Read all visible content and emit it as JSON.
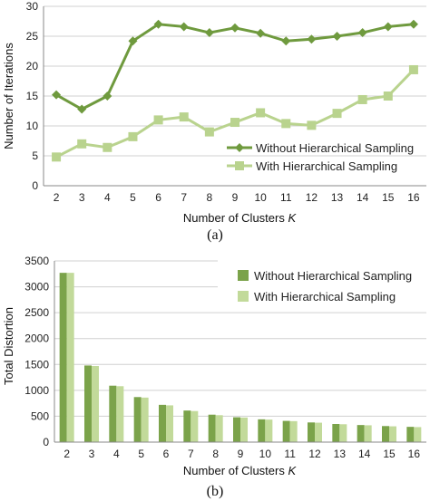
{
  "chart_data": [
    {
      "type": "line",
      "panel_label": "(a)",
      "x": [
        2,
        3,
        4,
        5,
        6,
        7,
        8,
        9,
        10,
        11,
        12,
        13,
        14,
        15,
        16
      ],
      "ylabel": "Number of Iterations",
      "xlabel_main": "Number of Clusters ",
      "xlabel_var": "K",
      "ylim": [
        0,
        30
      ],
      "yticks": [
        0,
        5,
        10,
        15,
        20,
        25,
        30
      ],
      "grid": "horizontal",
      "legend_position": "lower-right",
      "series": [
        {
          "name": "Without Hierarchical Sampling",
          "color": "#6f9a3e",
          "marker": "diamond",
          "values": [
            15.2,
            12.8,
            15.0,
            24.2,
            27.0,
            26.6,
            25.6,
            26.4,
            25.5,
            24.2,
            24.5,
            25.0,
            25.6,
            26.6,
            27.0
          ]
        },
        {
          "name": "With Hierarchical Sampling",
          "color": "#b9d38e",
          "marker": "square",
          "values": [
            4.8,
            7.0,
            6.4,
            8.2,
            11.0,
            11.5,
            9.0,
            10.6,
            12.2,
            10.4,
            10.1,
            12.1,
            14.4,
            15.0,
            19.4
          ]
        }
      ]
    },
    {
      "type": "bar",
      "panel_label": "(b)",
      "categories": [
        "2",
        "3",
        "4",
        "5",
        "6",
        "7",
        "8",
        "9",
        "10",
        "11",
        "12",
        "13",
        "14",
        "15",
        "16"
      ],
      "ylabel": "Total Distortion",
      "xlabel_main": "Number of Clusters ",
      "xlabel_var": "K",
      "ylim": [
        0,
        3500
      ],
      "yticks": [
        0,
        500,
        1000,
        1500,
        2000,
        2500,
        3000,
        3500
      ],
      "grid": "horizontal",
      "legend_position": "top-right",
      "series": [
        {
          "name": "Without Hierarchical Sampling",
          "color": "#7ba34a",
          "values": [
            3270,
            1480,
            1090,
            870,
            720,
            610,
            530,
            480,
            440,
            410,
            380,
            350,
            330,
            310,
            295
          ]
        },
        {
          "name": "With Hierarchical Sampling",
          "color": "#c2da9a",
          "values": [
            3270,
            1470,
            1080,
            860,
            710,
            600,
            520,
            475,
            435,
            405,
            375,
            345,
            325,
            305,
            290
          ]
        }
      ]
    }
  ]
}
